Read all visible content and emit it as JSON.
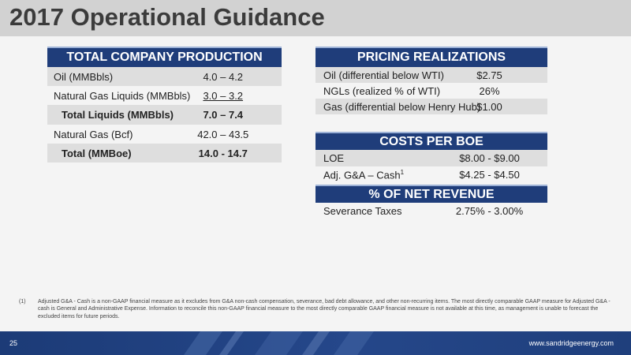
{
  "page": {
    "title": "2017 Operational Guidance",
    "page_number": "25",
    "website": "www.sandridgeenergy.com"
  },
  "production": {
    "header": "TOTAL COMPANY PRODUCTION",
    "rows": [
      {
        "label": "Oil (MMBbls)",
        "value": "4.0 – 4.2"
      },
      {
        "label": "Natural Gas Liquids (MMBbls)",
        "value": "3.0 – 3.2"
      },
      {
        "label": "Total Liquids (MMBbls)",
        "value": "7.0 – 7.4"
      },
      {
        "label": "Natural Gas (Bcf)",
        "value": "42.0 – 43.5"
      },
      {
        "label": "Total (MMBoe)",
        "value": "14.0 - 14.7"
      }
    ]
  },
  "pricing": {
    "header": "PRICING REALIZATIONS",
    "rows": [
      {
        "label": "Oil (differential below WTI)",
        "value": "$2.75"
      },
      {
        "label": "NGLs (realized % of WTI)",
        "value": "26%"
      },
      {
        "label": "Gas (differential below Henry Hub)",
        "value": "$1.00"
      }
    ]
  },
  "costs": {
    "header": "COSTS PER BOE",
    "rows": [
      {
        "label": "LOE",
        "value": "$8.00 - $9.00"
      },
      {
        "label": "Adj. G&A – Cash",
        "sup": "1",
        "value": "$4.25 - $4.50"
      }
    ]
  },
  "net_revenue": {
    "header": "% OF NET REVENUE",
    "rows": [
      {
        "label": "Severance Taxes",
        "value": "2.75% - 3.00%"
      }
    ]
  },
  "footnote": {
    "marker": "(1)",
    "text": "Adjusted G&A - Cash is a non-GAAP financial measure as it excludes from G&A non-cash compensation, severance, bad debt allowance, and other non-recurring items. The most directly comparable GAAP measure for Adjusted G&A - cash is General and Administrative Expense. Information to reconcile this non-GAAP financial measure to the most directly comparable GAAP financial measure is not available at this time, as management is unable to forecast the excluded items for future periods."
  },
  "colors": {
    "header_blue": "#1f3d7a",
    "row_gray": "#dedede",
    "title_bar": "#d2d2d2"
  }
}
